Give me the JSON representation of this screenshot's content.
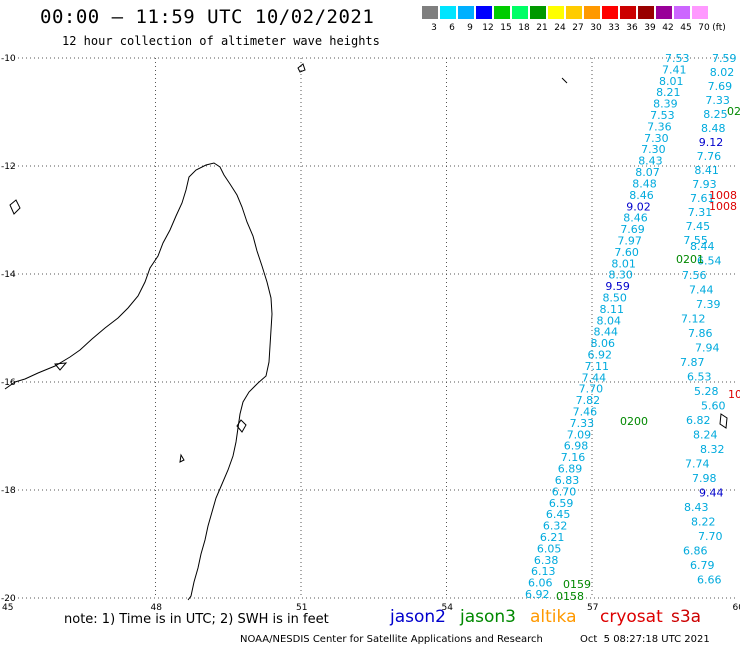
{
  "header": {
    "title": "00:00 – 11:59 UTC 10/02/2021",
    "subtitle": "12 hour collection of altimeter wave heights"
  },
  "colorbar": {
    "unit": "(ft)",
    "labels": [
      "3",
      "6",
      "9",
      "12",
      "15",
      "18",
      "21",
      "24",
      "27",
      "30",
      "33",
      "36",
      "39",
      "42",
      "45",
      "70"
    ],
    "colors": [
      "#7f7f7f",
      "#00e5ff",
      "#00b0ff",
      "#0000ff",
      "#00cc00",
      "#00ff66",
      "#009900",
      "#ffff00",
      "#ffcc00",
      "#ff9900",
      "#ff0000",
      "#cc0000",
      "#990000",
      "#990099",
      "#cc66ff",
      "#ff99ff"
    ]
  },
  "map": {
    "lat_ticks": [
      "-10",
      "-12",
      "-14",
      "-16",
      "-18",
      "-20"
    ],
    "lon_ticks": [
      "45",
      "48",
      "51",
      "54",
      "57",
      "60"
    ],
    "colors": {
      "jason2": "#0000cc",
      "jason3": "#008800",
      "altika": "#ff9900",
      "cryosat": "#dd0000",
      "s3a": "#cc0000",
      "cyan": "#00aadd"
    },
    "track_a": [
      "7.53",
      "7.41",
      "8.01",
      "8.21",
      "8.39",
      "7.53",
      "7.36",
      "7.30",
      "7.30",
      "8.43",
      "8.07",
      "8.48",
      "8.46",
      "9.02",
      "8.46",
      "7.69",
      "7.97",
      "7.60",
      "8.01",
      "8.30",
      "9.59",
      "8.50",
      "8.11",
      "8.04",
      "8.44",
      "8.06",
      "6.92",
      "7.11",
      "7.44",
      "7.70",
      "7.82",
      "7.46",
      "7.33",
      "7.09",
      "6.98",
      "7.16",
      "6.89",
      "6.83",
      "6.70",
      "6.59",
      "6.45",
      "6.32",
      "6.21",
      "6.05",
      "6.38",
      "6.13",
      "6.06",
      "6.92"
    ],
    "track_b": [
      "7.59",
      "8.02",
      "7.69",
      "7.33",
      "8.25",
      "8.48",
      "9.12",
      "7.76",
      "8.41",
      "7.93",
      "7.61",
      "7.31",
      "7.45",
      "7.55",
      "8.44",
      "6.54",
      "7.56",
      "7.44",
      "7.39",
      "7.12",
      "7.86",
      "7.94",
      "7.87",
      "6.53",
      "5.28",
      "5.60",
      "6.82",
      "8.24",
      "8.32",
      "7.74",
      "7.98",
      "9.44",
      "8.43",
      "8.22",
      "7.70",
      "6.86",
      "6.79",
      "6.66"
    ],
    "jason2_labels": [
      "9.12",
      "9.02",
      "9.59",
      "9.44"
    ],
    "jason3_labels": [
      "0201",
      "0200",
      "0159",
      "0158",
      "02"
    ],
    "cryosat_labels": [
      "1008",
      "1008",
      "10"
    ]
  },
  "footer": {
    "note": "note: 1) Time is in UTC; 2) SWH is in feet",
    "legend": [
      "jason2",
      "jason3",
      "altika",
      "cryosat",
      "s3a"
    ],
    "credit": "NOAA/NESDIS Center for Satellite Applications and Research",
    "timestamp": "Oct  5 08:27:18 UTC 2021"
  }
}
